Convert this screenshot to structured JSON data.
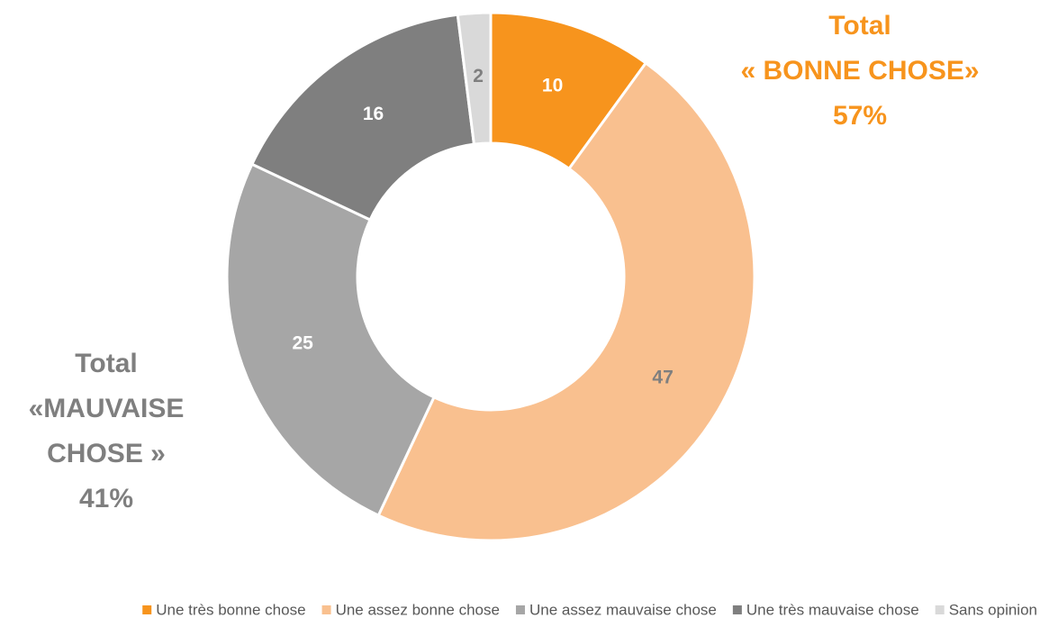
{
  "chart_data": {
    "type": "donut",
    "categories": [
      "Une très bonne chose",
      "Une assez bonne chose",
      "Une assez mauvaise chose",
      "Une très mauvaise chose",
      "Sans opinion"
    ],
    "values": [
      10,
      47,
      25,
      16,
      2
    ],
    "colors": [
      "#f7941d",
      "#f9c08f",
      "#a6a6a6",
      "#7f7f7f",
      "#d9d9d9"
    ],
    "legend": "bottom",
    "annotations": [
      {
        "lines": [
          "Total",
          "« BONNE CHOSE»",
          "57%"
        ],
        "color": "#f7941d"
      },
      {
        "lines": [
          "Total",
          "«MAUVAISE",
          "CHOSE »",
          "41%"
        ],
        "color": "#7f7f7f"
      }
    ]
  }
}
